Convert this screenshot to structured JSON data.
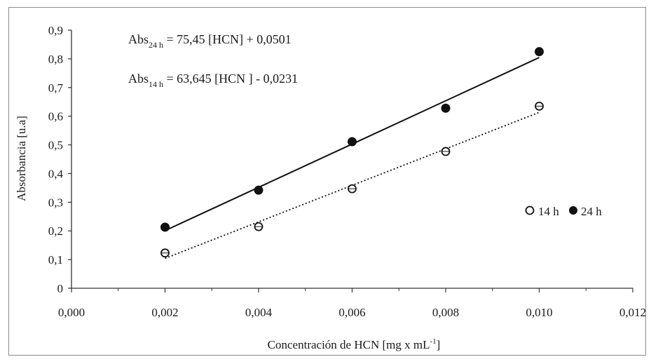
{
  "chart_data": {
    "type": "scatter",
    "xlabel": "Concentración de HCN  [mg x mL",
    "xlabel_sup": "-1",
    "xlabel_tail": "]",
    "ylabel": "Absorbancia [u.a]",
    "xlim": [
      0,
      0.012
    ],
    "ylim": [
      0,
      0.9
    ],
    "x_ticks": [
      0,
      0.002,
      0.004,
      0.006,
      0.008,
      0.01,
      0.012
    ],
    "x_tick_labels": [
      "0,000",
      "0,002",
      "0,004",
      "0,006",
      "0,008",
      "0,010",
      "0,012"
    ],
    "y_ticks": [
      0,
      0.1,
      0.2,
      0.3,
      0.4,
      0.5,
      0.6,
      0.7,
      0.8,
      0.9
    ],
    "y_tick_labels": [
      "0",
      "0,1",
      "0,2",
      "0,3",
      "0,4",
      "0,5",
      "0,6",
      "0,7",
      "0,8",
      "0,9"
    ],
    "grid": false,
    "legend_placement": "right",
    "series": [
      {
        "name": "14 h",
        "marker": "open-circle",
        "trendline": "dotted",
        "x": [
          0.002,
          0.004,
          0.006,
          0.008,
          0.01
        ],
        "y": [
          0.123,
          0.215,
          0.347,
          0.477,
          0.635
        ],
        "fit": {
          "slope": 63.645,
          "intercept": -0.0231
        }
      },
      {
        "name": "24 h",
        "marker": "filled-circle",
        "trendline": "solid",
        "x": [
          0.002,
          0.004,
          0.006,
          0.008,
          0.01
        ],
        "y": [
          0.213,
          0.342,
          0.511,
          0.628,
          0.825
        ],
        "fit": {
          "slope": 75.45,
          "intercept": 0.0501
        }
      }
    ],
    "annotations": [
      {
        "prefix": "Abs",
        "sub": "24 h",
        "text": " = 75,45 [HCN] + 0,0501"
      },
      {
        "prefix": "Abs",
        "sub": "14 h",
        "text": " = 63,645 [HCN ] - 0,0231"
      }
    ],
    "colors": {
      "ink": "#111111",
      "axis": "#333333",
      "frame": "#8c8c8c"
    }
  }
}
